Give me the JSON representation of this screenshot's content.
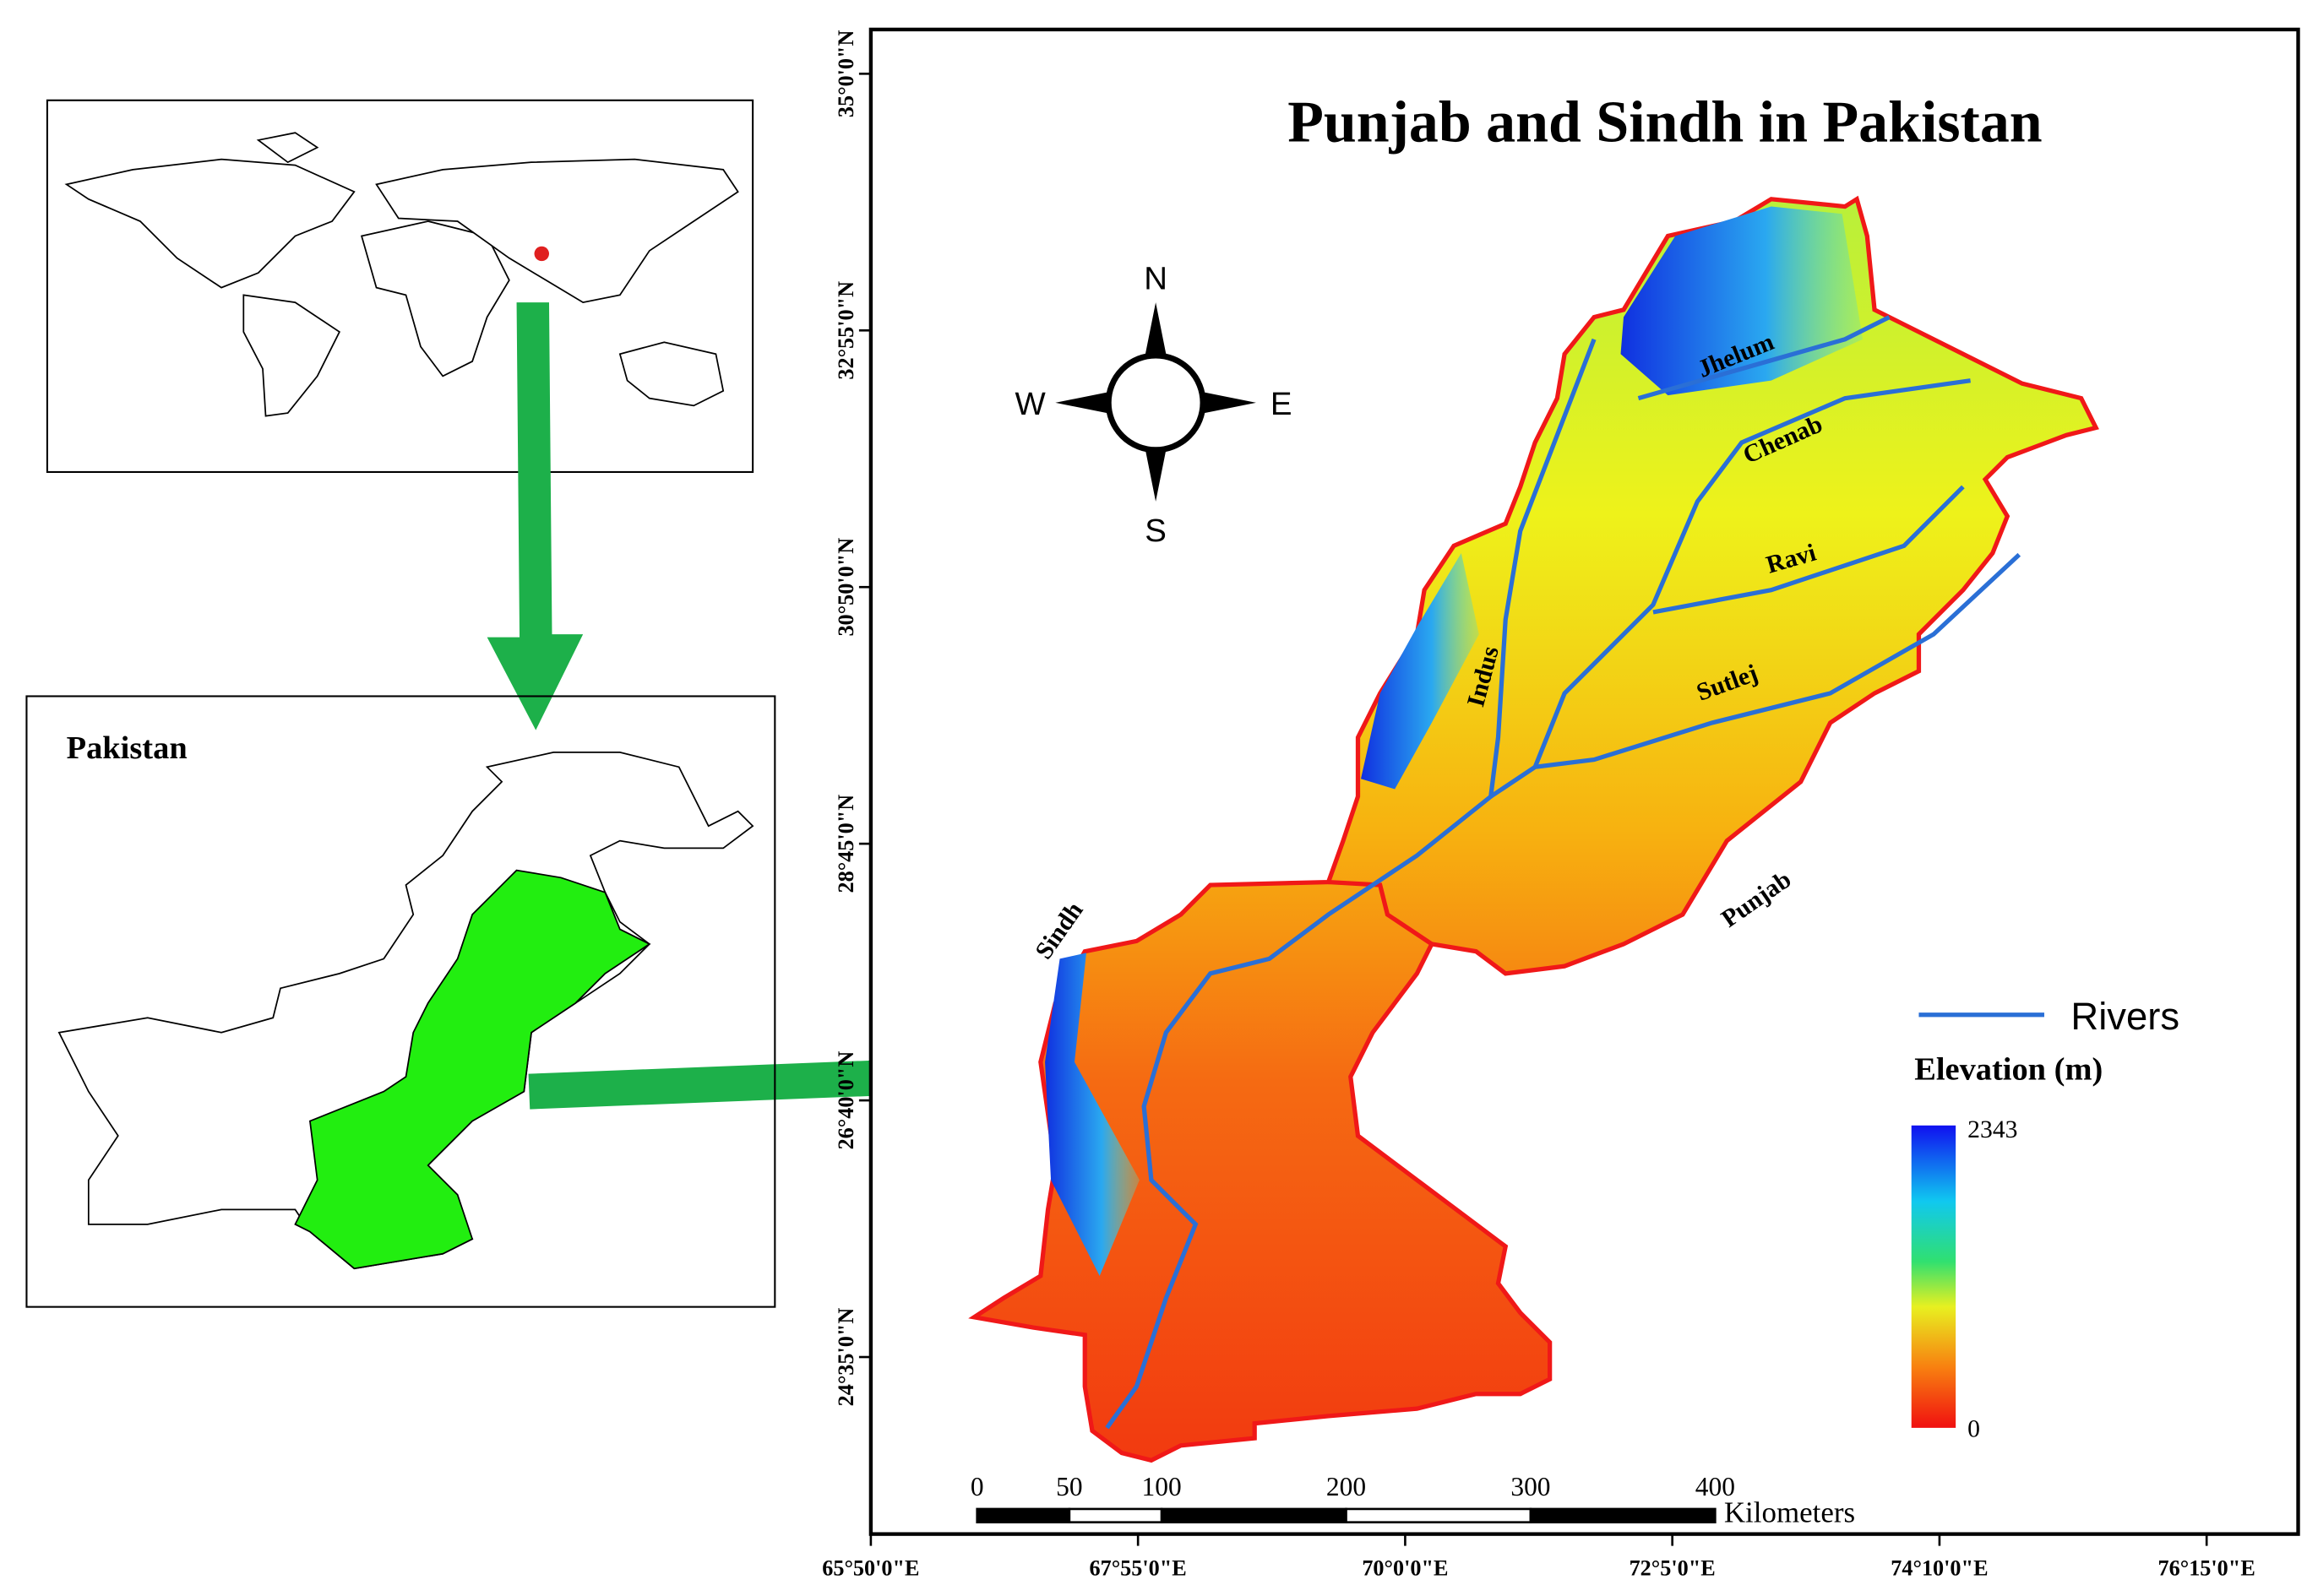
{
  "title": "Punjab and Sindh in Pakistan",
  "inset": {
    "country": "Pakistan"
  },
  "compass": {
    "north": "N",
    "south": "S",
    "east": "E",
    "west": "W"
  },
  "rivers": [
    "Jhelum",
    "Chenab",
    "Ravi",
    "Sutlej",
    "Indus"
  ],
  "provinces": [
    "Sindh",
    "Punjab"
  ],
  "legend": {
    "rivers": "Rivers",
    "elevation_title": "Elevation (m)",
    "elevation_max": 2343,
    "elevation_min": 0
  },
  "scale_bar": {
    "ticks": [
      0,
      50,
      100,
      200,
      300,
      400
    ],
    "unit": "Kilometers"
  },
  "latitude_labels": [
    "35°0'0\"N",
    "32°55'0\"N",
    "30°50'0\"N",
    "28°45'0\"N",
    "26°40'0\"N",
    "24°35'0\"N"
  ],
  "longitude_labels": [
    "65°50'0\"E",
    "67°55'0\"E",
    "70°0'0\"E",
    "72°5'0\"E",
    "74°10'0\"E",
    "76°15'0\"E"
  ]
}
